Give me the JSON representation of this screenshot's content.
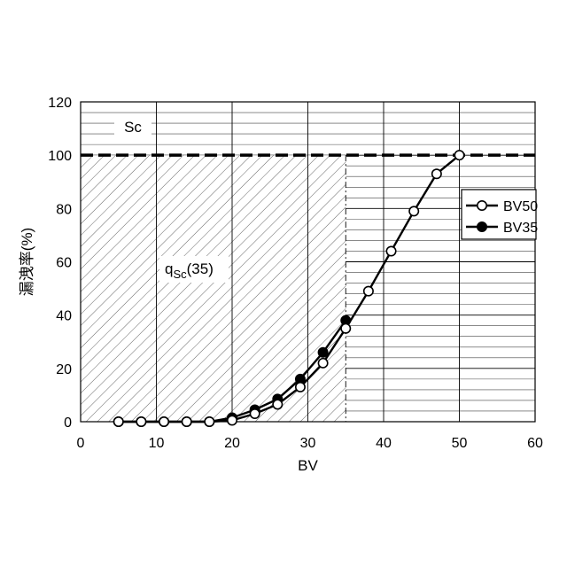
{
  "chart_data": {
    "type": "line",
    "xlabel": "BV",
    "ylabel": "漏洩率(%)",
    "xlim": [
      0,
      60
    ],
    "ylim": [
      0,
      120
    ],
    "xticks": [
      "0",
      "10",
      "20",
      "30",
      "40",
      "50",
      "60"
    ],
    "yticks": [
      "0",
      "20",
      "40",
      "60",
      "80",
      "100",
      "120"
    ],
    "series": [
      {
        "name": "BV50",
        "marker": "open-circle",
        "x": [
          5,
          8,
          11,
          14,
          17,
          20,
          23,
          26,
          29,
          32,
          35,
          38,
          41,
          44,
          47,
          50
        ],
        "y": [
          0,
          0,
          0,
          0,
          0,
          0.5,
          3,
          6.5,
          13,
          22,
          35,
          49,
          64,
          79,
          93,
          100
        ]
      },
      {
        "name": "BV35",
        "marker": "filled-circle",
        "x": [
          5,
          8,
          11,
          14,
          17,
          20,
          23,
          26,
          29,
          32,
          35
        ],
        "y": [
          0,
          0,
          0,
          0,
          0,
          1.5,
          4.5,
          8.5,
          16,
          26,
          38
        ]
      }
    ],
    "reference_line": {
      "y": 100,
      "style": "dashed"
    },
    "shaded_region": {
      "x": [
        0,
        35
      ],
      "y": [
        0,
        100
      ],
      "pattern": "diagonal-hatch"
    },
    "annotations": {
      "sc": "Sc",
      "q_main": "q",
      "q_sub": "Sc",
      "q_paren": "(35)"
    },
    "grid": {
      "horizontal_step": 4,
      "vertical_step": 10
    },
    "legend_position": "right"
  }
}
